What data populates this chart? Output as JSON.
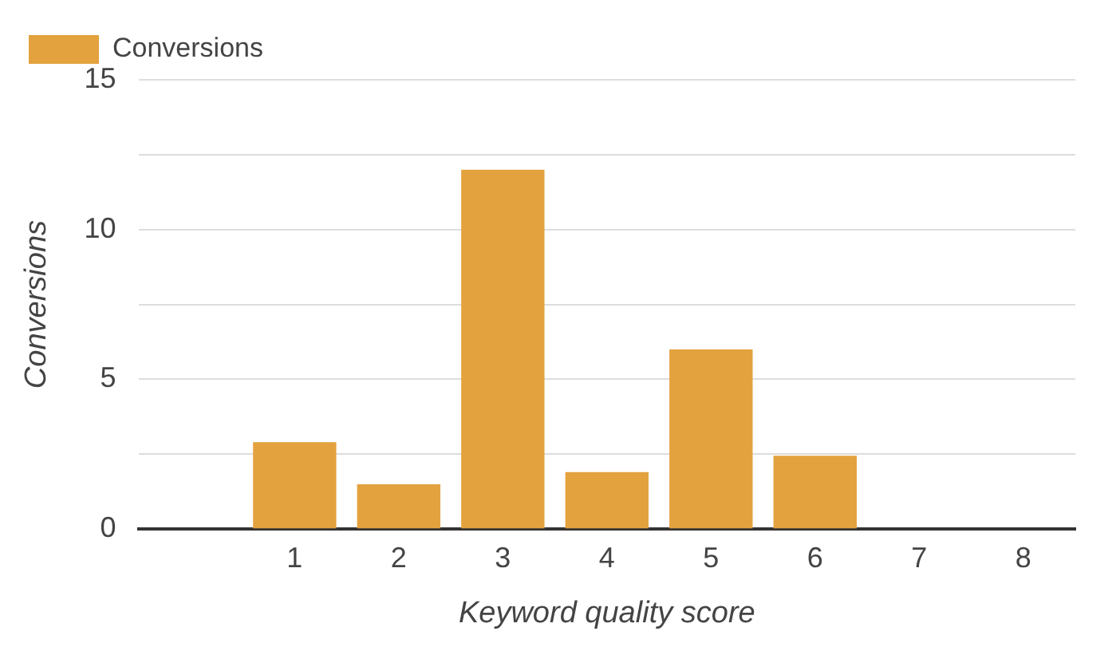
{
  "chart_data": {
    "type": "bar",
    "xlabel": "Keyword quality score",
    "ylabel": "Conversions",
    "categories": [
      null,
      "1",
      "2",
      "3",
      "4",
      "5",
      "6",
      "7",
      "8"
    ],
    "series": [
      {
        "name": "Conversions",
        "color": "#e3a23e",
        "values": [
          null,
          2.9,
          1.5,
          12,
          1.9,
          6,
          2.45,
          0,
          0
        ]
      }
    ],
    "ylim": [
      0,
      15
    ],
    "yticks": [
      0,
      {
        "value": 2.5,
        "label": null
      },
      5,
      {
        "value": 7.5,
        "label": null
      },
      10,
      {
        "value": 12.5,
        "label": null
      },
      15
    ],
    "grid": "y",
    "legend": "top left"
  }
}
